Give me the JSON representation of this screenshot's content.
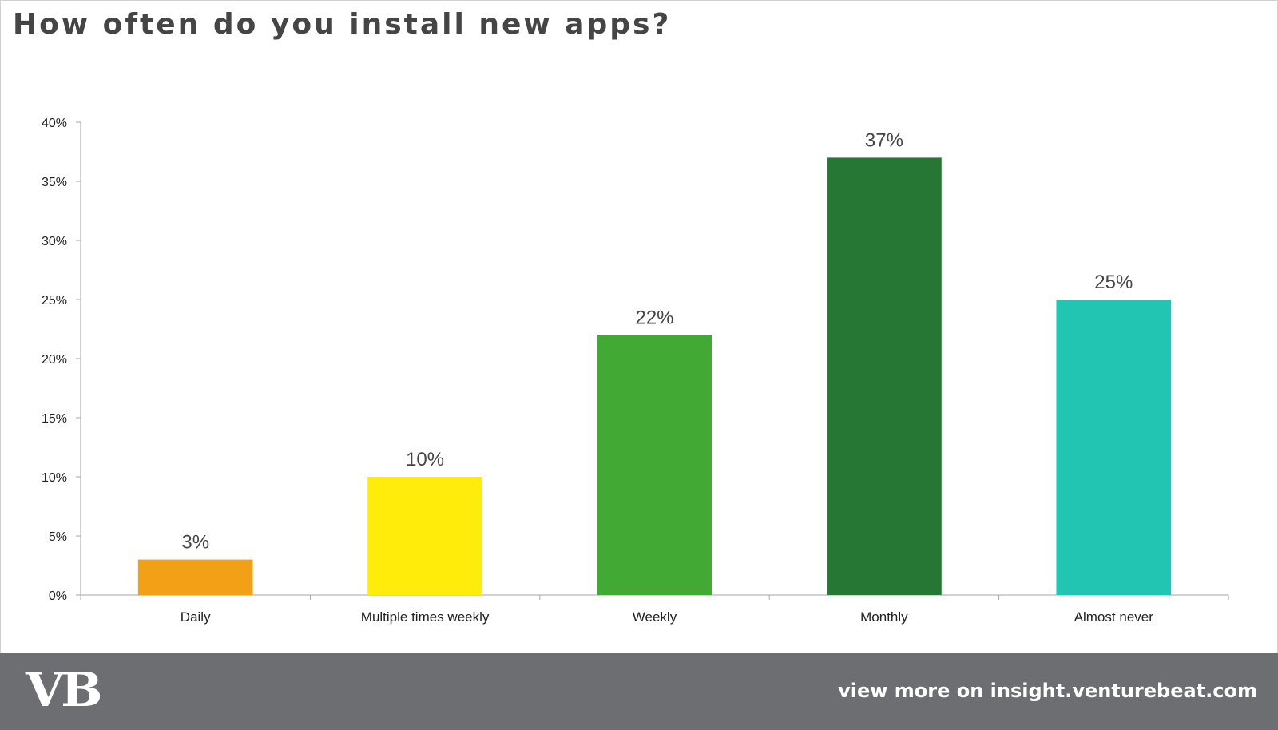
{
  "title": "How often do you install new apps?",
  "chart_data": {
    "type": "bar",
    "categories": [
      "Daily",
      "Multiple times weekly",
      "Weekly",
      "Monthly",
      "Almost never"
    ],
    "values": [
      3,
      10,
      22,
      37,
      25
    ],
    "data_labels": [
      "3%",
      "10%",
      "22%",
      "37%",
      "25%"
    ],
    "colors": [
      "#f2a116",
      "#ffec0a",
      "#42a935",
      "#257733",
      "#22c5b2"
    ],
    "ylim": [
      0,
      40
    ],
    "yticks": [
      0,
      5,
      10,
      15,
      20,
      25,
      30,
      35,
      40
    ],
    "ytick_labels": [
      "0%",
      "5%",
      "10%",
      "15%",
      "20%",
      "25%",
      "30%",
      "35%",
      "40%"
    ],
    "xlabel": "",
    "ylabel": "",
    "grid": false,
    "legend": "none"
  },
  "footer": {
    "logo_text": "VB",
    "link_text": "view more on insight.venturebeat.com",
    "background": "#6d6e71"
  }
}
